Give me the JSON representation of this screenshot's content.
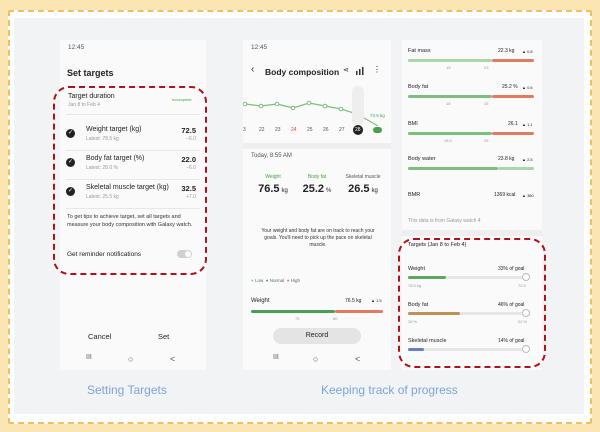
{
  "captions": {
    "left": "Setting Targets",
    "right": "Keeping track of progress"
  },
  "screen1": {
    "time": "12:45",
    "title": "Set targets",
    "duration_label": "Target duration",
    "duration_value": "Jan 8 to Feb 4",
    "duration_link": "Incomplete",
    "targets": [
      {
        "name": "Weight target (kg)",
        "latest": "Latest: 78.5 kg",
        "value": "72.5",
        "delta": "−6.0"
      },
      {
        "name": "Body fat target (%)",
        "latest": "Latest: 28.0 %",
        "value": "22.0",
        "delta": "−6.0"
      },
      {
        "name": "Skeletal muscle target (kg)",
        "latest": "Latest: 25.5 kg",
        "value": "32.5",
        "delta": "+7.0"
      }
    ],
    "tip": "To get tips to achieve target, set all targets and measure your body composition with Galaxy watch.",
    "reminder_label": "Get reminder notifications",
    "cancel": "Cancel",
    "set": "Set"
  },
  "screen2": {
    "time": "12:45",
    "title": "Body composition",
    "dates": [
      "3",
      "22",
      "23",
      "24",
      "25",
      "26",
      "27",
      "28"
    ],
    "chart_label": "73.5 kg",
    "timestamp": "Today, 8:55 AM",
    "metrics": [
      {
        "label": "Weight",
        "value": "76.5",
        "unit": "kg"
      },
      {
        "label": "Body fat",
        "value": "25.2",
        "unit": "%"
      },
      {
        "label": "Skeletal muscle",
        "value": "26.5",
        "unit": "kg"
      }
    ],
    "message": "Your weight and body fat are on track to reach your goals. You'll need to pick up the pace on skeletal muscle.",
    "legend": [
      "Low",
      "Normal",
      "High"
    ],
    "weight_label": "Weight",
    "weight_value": "76.5 kg",
    "weight_delta": "▲ 1.5",
    "weight_axis": [
      "75",
      "80"
    ],
    "record": "Record"
  },
  "screen3": {
    "items": [
      {
        "name": "Fat mass",
        "value": "22.3 kg",
        "delta": "▲ 0.8",
        "ticks": [
          "19",
          "23"
        ]
      },
      {
        "name": "Body fat",
        "value": "25.2 %",
        "delta": "▲ 0.6",
        "ticks": [
          "18",
          "25"
        ]
      },
      {
        "name": "BMI",
        "value": "26.1",
        "delta": "▲ 1.1",
        "ticks": [
          "18.5",
          "25"
        ]
      },
      {
        "name": "Body water",
        "value": "23.8 kg",
        "delta": "▲ 2.5",
        "ticks": [
          "",
          ""
        ]
      },
      {
        "name": "BMR",
        "value": "1369 kcal",
        "delta": "▲ 380",
        "ticks": []
      }
    ],
    "source_note": "This data is from Galaxy watch 4",
    "targets_header": "Targets (Jan 8 to Feb 4)",
    "targets": [
      {
        "name": "Weight",
        "goal": "33% of goal",
        "start": "78.5 kg",
        "end": "72.5",
        "progress": 0.33,
        "color": "#5ba85f"
      },
      {
        "name": "Body fat",
        "goal": "46% of goal",
        "start": "28 %",
        "end": "22 %",
        "progress": 0.46,
        "color": "#c0905a"
      },
      {
        "name": "Skeletal muscle",
        "goal": "14% of goal",
        "start": "",
        "end": "",
        "progress": 0.14,
        "color": "#6a7ec8"
      }
    ]
  },
  "nav": {
    "recent": "III",
    "home": "○",
    "back": "<"
  },
  "colors": {
    "accent_green": "#4a9e52",
    "warning_red": "#b0121b",
    "caption_blue": "#7aa5d6",
    "bar_red": "#e07b62"
  }
}
